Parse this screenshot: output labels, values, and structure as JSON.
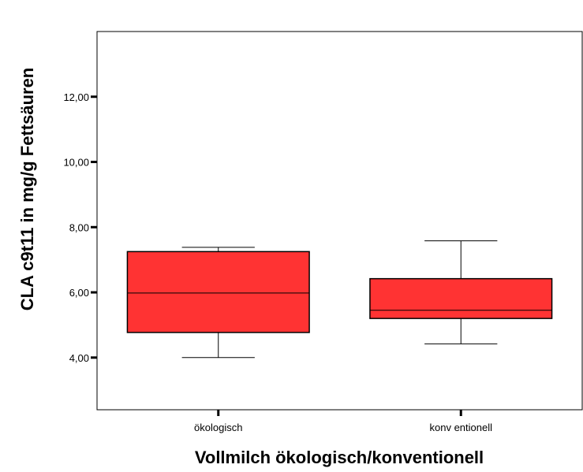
{
  "chart_data": {
    "type": "boxplot",
    "title": "",
    "xlabel": "Vollmilch ökologisch/konventionell",
    "ylabel": "CLA c9t11 in mg/g Fettsäuren",
    "ylim": [
      2.4,
      14.0
    ],
    "yticks": [
      {
        "value": 4,
        "label": "4,00"
      },
      {
        "value": 6,
        "label": "6,00"
      },
      {
        "value": 8,
        "label": "8,00"
      },
      {
        "value": 10,
        "label": "10,00"
      },
      {
        "value": 12,
        "label": "12,00"
      }
    ],
    "grid": false,
    "legend": "none",
    "categories": [
      "ökologisch",
      "konv entionell"
    ],
    "boxes": [
      {
        "category": "ökologisch",
        "min": 4.0,
        "q1": 4.77,
        "median": 5.98,
        "q3": 7.25,
        "max": 7.38
      },
      {
        "category": "konv entionell",
        "min": 4.42,
        "q1": 5.2,
        "median": 5.45,
        "q3": 6.42,
        "max": 7.58
      }
    ],
    "box_color": "#ff3333"
  }
}
